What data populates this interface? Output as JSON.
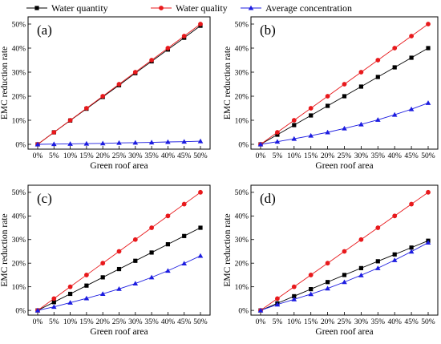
{
  "figure": {
    "legend": [
      {
        "label": "Water quantity",
        "color": "#000000",
        "marker": "square"
      },
      {
        "label": "Water quality",
        "color": "#e8191c",
        "marker": "circle"
      },
      {
        "label": "Average concentration",
        "color": "#1c1ce0",
        "marker": "triangle"
      }
    ]
  },
  "chart_data": [
    {
      "type": "line",
      "panel_label": "(a)",
      "xlabel": "Green roof area",
      "ylabel": "EMC reduction rate",
      "x": [
        "0%",
        "5%",
        "10%",
        "15%",
        "20%",
        "25%",
        "30%",
        "35%",
        "40%",
        "45%",
        "50%"
      ],
      "yticks": [
        "0%",
        "10%",
        "20%",
        "30%",
        "40%",
        "50%"
      ],
      "ylim": [
        -2,
        53
      ],
      "grid": false,
      "series": [
        {
          "name": "Water quantity",
          "color": "#000000",
          "marker": "square",
          "values": [
            0,
            5,
            9.9,
            14.8,
            19.7,
            24.6,
            29.6,
            34.5,
            39.4,
            44.3,
            49.3
          ]
        },
        {
          "name": "Water quality",
          "color": "#e8191c",
          "marker": "circle",
          "values": [
            0,
            5,
            10,
            15,
            20,
            25,
            30,
            35,
            40,
            45,
            50
          ]
        },
        {
          "name": "Average concentration",
          "color": "#1c1ce0",
          "marker": "triangle",
          "values": [
            0,
            0.1,
            0.2,
            0.3,
            0.4,
            0.6,
            0.7,
            0.8,
            1.0,
            1.1,
            1.3
          ]
        }
      ]
    },
    {
      "type": "line",
      "panel_label": "(b)",
      "xlabel": "Green roof area",
      "ylabel": "EMC reduction rate",
      "x": [
        "0%",
        "5%",
        "10%",
        "15%",
        "20%",
        "25%",
        "30%",
        "35%",
        "40%",
        "45%",
        "50%"
      ],
      "yticks": [
        "0%",
        "10%",
        "20%",
        "30%",
        "40%",
        "50%"
      ],
      "ylim": [
        -2,
        53
      ],
      "grid": false,
      "series": [
        {
          "name": "Water quantity",
          "color": "#000000",
          "marker": "square",
          "values": [
            0,
            4,
            8,
            12,
            16,
            20,
            24,
            28,
            32,
            36,
            40
          ]
        },
        {
          "name": "Water quality",
          "color": "#e8191c",
          "marker": "circle",
          "values": [
            0,
            5,
            10,
            15,
            20,
            25,
            30,
            35,
            40,
            45,
            50
          ]
        },
        {
          "name": "Average concentration",
          "color": "#1c1ce0",
          "marker": "triangle",
          "values": [
            0,
            1.1,
            2.3,
            3.6,
            5.0,
            6.6,
            8.3,
            10.2,
            12.3,
            14.6,
            17.2
          ]
        }
      ]
    },
    {
      "type": "line",
      "panel_label": "(c)",
      "xlabel": "Green roof area",
      "ylabel": "EMC reduction rate",
      "x": [
        "0%",
        "5%",
        "10%",
        "15%",
        "20%",
        "25%",
        "30%",
        "35%",
        "40%",
        "45%",
        "50%"
      ],
      "yticks": [
        "0%",
        "10%",
        "20%",
        "30%",
        "40%",
        "50%"
      ],
      "ylim": [
        -2,
        53
      ],
      "grid": false,
      "series": [
        {
          "name": "Water quantity",
          "color": "#000000",
          "marker": "square",
          "values": [
            0,
            3.5,
            7,
            10.5,
            14,
            17.5,
            21,
            24.5,
            28,
            31.5,
            35
          ]
        },
        {
          "name": "Water quality",
          "color": "#e8191c",
          "marker": "circle",
          "values": [
            0,
            5,
            10,
            15,
            20,
            25,
            30,
            35,
            40,
            45,
            50
          ]
        },
        {
          "name": "Average concentration",
          "color": "#1c1ce0",
          "marker": "triangle",
          "values": [
            0,
            1.5,
            3.3,
            5.1,
            7.0,
            9.1,
            11.4,
            14.0,
            16.8,
            19.9,
            23.1
          ]
        }
      ]
    },
    {
      "type": "line",
      "panel_label": "(d)",
      "xlabel": "Green roof area",
      "ylabel": "EMC reduction rate",
      "x": [
        "0%",
        "5%",
        "10%",
        "15%",
        "20%",
        "25%",
        "30%",
        "35%",
        "40%",
        "45%",
        "50%"
      ],
      "yticks": [
        "0%",
        "10%",
        "20%",
        "30%",
        "40%",
        "50%"
      ],
      "ylim": [
        -2,
        53
      ],
      "grid": false,
      "series": [
        {
          "name": "Water quantity",
          "color": "#000000",
          "marker": "square",
          "values": [
            0,
            3,
            6,
            9,
            12,
            15,
            17.9,
            20.8,
            23.7,
            26.6,
            29.5
          ]
        },
        {
          "name": "Water quality",
          "color": "#e8191c",
          "marker": "circle",
          "values": [
            0,
            5,
            10,
            15,
            20,
            25,
            30,
            35,
            40,
            45,
            50
          ]
        },
        {
          "name": "Average concentration",
          "color": "#1c1ce0",
          "marker": "triangle",
          "values": [
            0,
            2.5,
            4.7,
            6.9,
            9.3,
            12.0,
            14.9,
            17.9,
            21.3,
            24.9,
            28.7
          ]
        }
      ]
    }
  ]
}
